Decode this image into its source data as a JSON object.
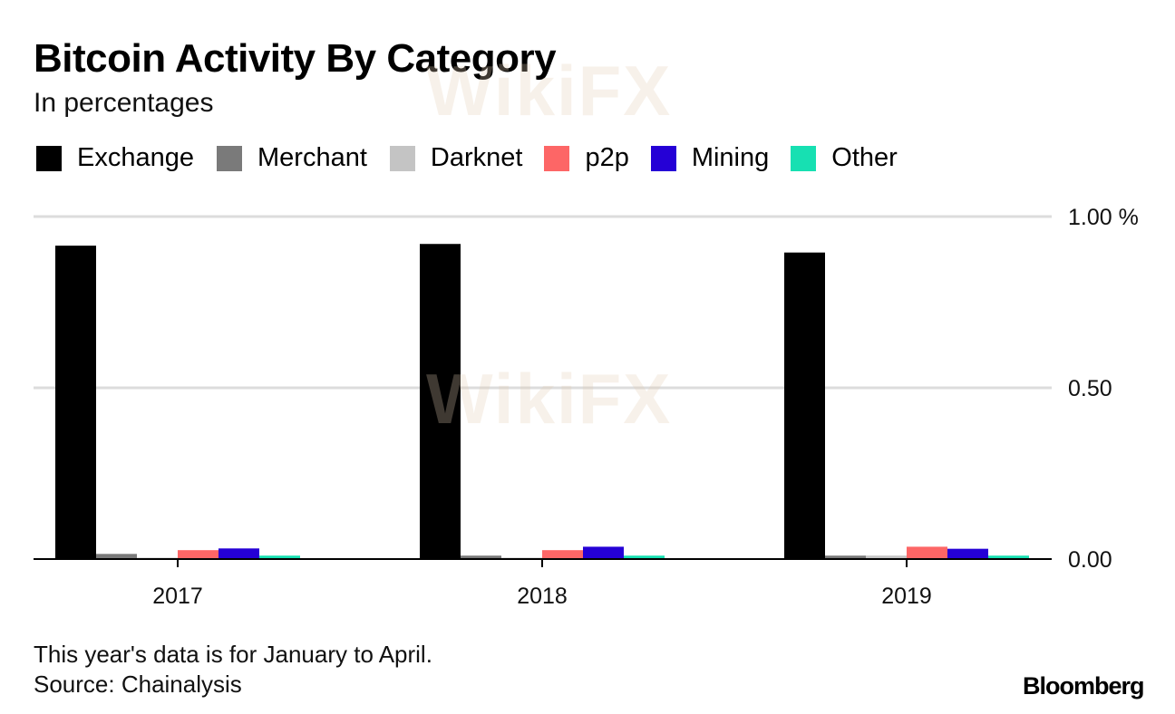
{
  "chart_data": {
    "type": "bar",
    "title": "Bitcoin Activity By Category",
    "subtitle": "In percentages",
    "categories": [
      "2017",
      "2018",
      "2019"
    ],
    "series": [
      {
        "name": "Exchange",
        "color": "#000000",
        "values": [
          0.915,
          0.92,
          0.895
        ]
      },
      {
        "name": "Merchant",
        "color": "#7a7a7a",
        "values": [
          0.015,
          0.01,
          0.01
        ]
      },
      {
        "name": "Darknet",
        "color": "#c4c4c4",
        "values": [
          0.004,
          0.004,
          0.01
        ]
      },
      {
        "name": "p2p",
        "color": "#fd6666",
        "values": [
          0.026,
          0.026,
          0.036
        ]
      },
      {
        "name": "Mining",
        "color": "#2500d6",
        "values": [
          0.031,
          0.036,
          0.03
        ]
      },
      {
        "name": "Other",
        "color": "#17e0b2",
        "values": [
          0.01,
          0.01,
          0.01
        ]
      }
    ],
    "y_ticks": [
      {
        "value": 1.0,
        "label": "1.00 %"
      },
      {
        "value": 0.5,
        "label": "0.50"
      },
      {
        "value": 0.0,
        "label": "0.00"
      }
    ],
    "ylim": [
      0,
      1.0
    ],
    "grid": true,
    "legend_position": "top",
    "xlabel": "",
    "ylabel": ""
  },
  "footnotes": {
    "note": "This year's data is for January to April.",
    "source": "Source: Chainalysis"
  },
  "brand": "Bloomberg",
  "watermark_text": "WikiFX"
}
